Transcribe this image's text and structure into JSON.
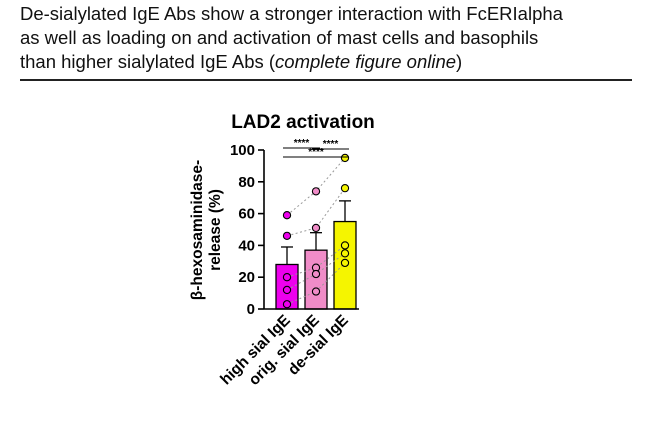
{
  "header": {
    "line1": "De-sialylated IgE Abs show a stronger interaction with FcERIalpha",
    "line2": "as well as loading on and activation of mast cells and basophils",
    "line3_prefix": "than higher sialylated IgE Abs (",
    "line3_italic": "complete figure online",
    "line3_suffix": ")"
  },
  "chart_data": {
    "type": "bar",
    "title": "LAD2 activation",
    "ylabel_line1": "β-hexosaminidase-",
    "ylabel_line2": "release (%)",
    "xlabel": "",
    "ylim": [
      0,
      100
    ],
    "yticks": [
      0,
      20,
      40,
      60,
      80,
      100
    ],
    "categories": [
      "high sial IgE",
      "orig. sial IgE",
      "de-sial IgE"
    ],
    "values": [
      28,
      37,
      55
    ],
    "errors": [
      11,
      11,
      13
    ],
    "bar_colors": [
      "#ee00ee",
      "#f08cc8",
      "#f5f500"
    ],
    "points": [
      [
        59,
        46,
        20,
        12,
        3
      ],
      [
        74,
        51,
        26,
        22,
        11
      ],
      [
        95,
        76,
        40,
        35,
        29
      ]
    ],
    "significance": [
      {
        "label": "****",
        "from": 0,
        "to": 1
      },
      {
        "label": "****",
        "from": 1,
        "to": 2
      },
      {
        "label": "****",
        "from": 0,
        "to": 2
      }
    ]
  }
}
